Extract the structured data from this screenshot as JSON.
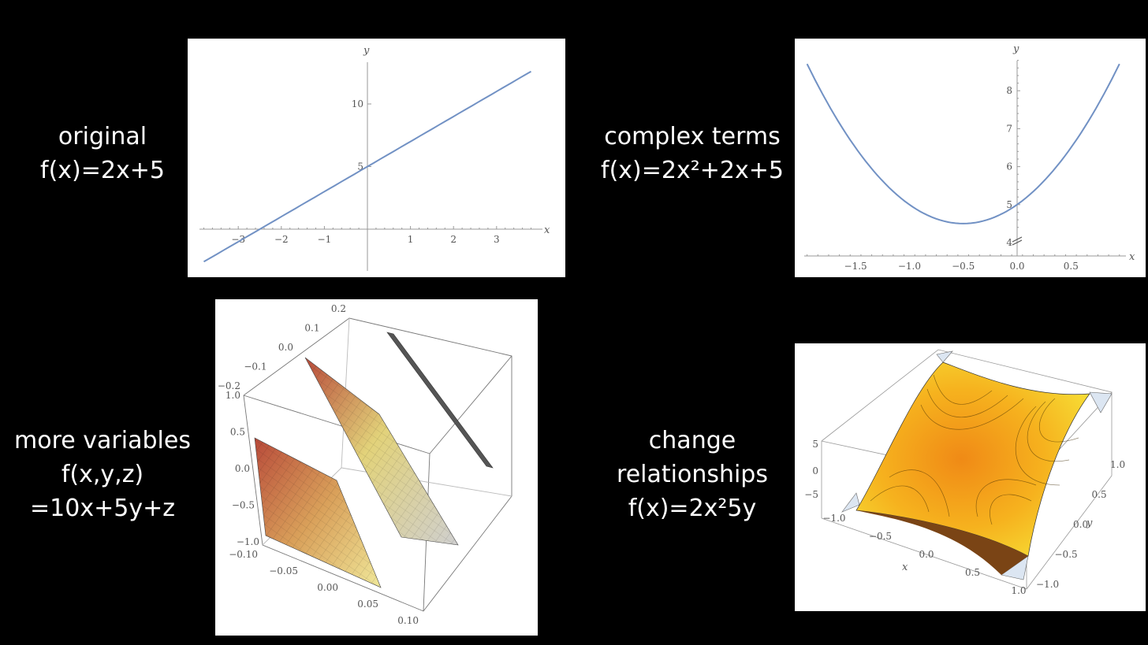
{
  "labels": {
    "original": [
      "original",
      "f(x)=2x+5"
    ],
    "complex": [
      "complex terms",
      "f(x)=2x²+2x+5"
    ],
    "variables": [
      "more variables",
      "f(x,y,z)",
      "=10x+5y+z"
    ],
    "relationships": [
      "change",
      "relationships",
      "f(x)=2x²5y"
    ]
  },
  "colors": {
    "curve": "#7191c4",
    "background": "#000000",
    "text": "#ffffff"
  },
  "chart_data": [
    {
      "type": "line",
      "function": "2x+5",
      "x_range": [
        -3.8,
        3.8
      ],
      "xlabel": "x",
      "ylabel": "y",
      "x_ticks": [
        "-3",
        "-2",
        "-1",
        "1",
        "2",
        "3"
      ],
      "y_ticks": [
        "5",
        "10"
      ]
    },
    {
      "type": "line",
      "function": "2x^2+2x+5",
      "x_range": [
        -1.95,
        0.95
      ],
      "xlabel": "x",
      "ylabel": "y",
      "x_ticks": [
        "-1.5",
        "-1.0",
        "-0.5",
        "0.0",
        "0.5"
      ],
      "y_ticks": [
        "4",
        "5",
        "6",
        "7",
        "8"
      ]
    },
    {
      "type": "surface3d",
      "function": "10x+5y+z",
      "x_ticks": [
        "-0.10",
        "-0.05",
        "0.00",
        "0.05",
        "0.10"
      ],
      "y_ticks": [
        "-1.0",
        "-0.5",
        "0.0",
        "0.5",
        "1.0"
      ],
      "z_ticks": [
        "-0.2",
        "-0.1",
        "0.0",
        "0.1",
        "0.2"
      ]
    },
    {
      "type": "surface3d",
      "function": "2x^2 5y",
      "xlabel": "x",
      "ylabel": "y",
      "x_ticks": [
        "-1.0",
        "-0.5",
        "0.0",
        "0.5",
        "1.0"
      ],
      "y_ticks": [
        "-1.0",
        "-0.5",
        "0.0",
        "0.5",
        "1.0"
      ],
      "z_ticks": [
        "-5",
        "0",
        "5"
      ]
    }
  ]
}
